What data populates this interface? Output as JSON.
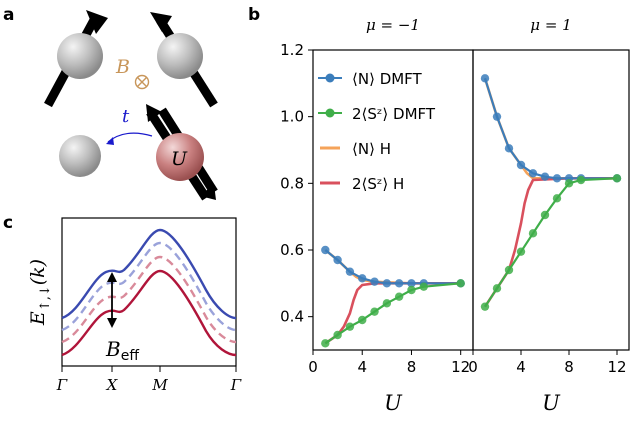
{
  "panels": {
    "a": {
      "letter": "a",
      "field_label": "B",
      "hop_label": "t",
      "interaction_label": "U"
    },
    "b": {
      "letter": "b"
    },
    "c": {
      "letter": "c",
      "ylabel": "E↑,↓(k)",
      "annotation": "B_eff",
      "xticks": [
        "Γ",
        "X",
        "M",
        "Γ"
      ]
    }
  },
  "colors": {
    "N_dmft": "#3b7dbb",
    "S_dmft": "#3fae49",
    "N_h": "#f5a35a",
    "S_h": "#d9505d",
    "band_up_solid": "#3a4ab0",
    "band_up_dash": "#9aa2da",
    "band_dn_dash": "#d98a9a",
    "band_dn_solid": "#b0153a",
    "sphere": "#bdbdbd",
    "sphere_U": "#c98080",
    "field": "#c8965a",
    "hop": "#1a1acc"
  },
  "chart_data": [
    {
      "type": "line",
      "title": "μ = −1",
      "xlabel": "U",
      "ylabel": "",
      "xlim": [
        0,
        13
      ],
      "ylim": [
        0.3,
        1.2
      ],
      "xticks": [
        0,
        4,
        8,
        12
      ],
      "yticks": [
        0.4,
        0.6,
        0.8,
        1.0,
        1.2
      ],
      "ytick_labels": [
        "0.4",
        "0.6",
        "0.8",
        "1.0",
        "1.2"
      ],
      "legend": {
        "placement": "top-right",
        "entries": [
          "⟨N⟩ DMFT",
          "2⟨Sᶻ⟩ DMFT",
          "⟨N⟩ H",
          "2⟨Sᶻ⟩ H"
        ]
      },
      "series": [
        {
          "name": "⟨N⟩ DMFT",
          "kind": "markers+line",
          "x": [
            1,
            2,
            3,
            4,
            5,
            6,
            7,
            8,
            9,
            12
          ],
          "y": [
            0.6,
            0.57,
            0.535,
            0.515,
            0.505,
            0.5,
            0.5,
            0.5,
            0.5,
            0.5
          ]
        },
        {
          "name": "2⟨Sᶻ⟩ DMFT",
          "kind": "markers+line",
          "x": [
            1,
            2,
            3,
            4,
            5,
            6,
            7,
            8,
            9,
            12
          ],
          "y": [
            0.32,
            0.345,
            0.37,
            0.39,
            0.415,
            0.44,
            0.46,
            0.48,
            0.49,
            0.5
          ]
        },
        {
          "name": "⟨N⟩ H",
          "kind": "line",
          "x": [
            1,
            2,
            3,
            3.5,
            4,
            5,
            6,
            8,
            12
          ],
          "y": [
            0.6,
            0.57,
            0.535,
            0.52,
            0.51,
            0.505,
            0.503,
            0.5,
            0.5
          ]
        },
        {
          "name": "2⟨Sᶻ⟩ H",
          "kind": "line",
          "x": [
            1,
            2,
            2.5,
            3,
            3.3,
            3.6,
            4,
            5,
            8,
            12
          ],
          "y": [
            0.32,
            0.345,
            0.37,
            0.41,
            0.45,
            0.48,
            0.495,
            0.5,
            0.5,
            0.5
          ]
        }
      ]
    },
    {
      "type": "line",
      "title": "μ = 1",
      "xlabel": "U",
      "ylabel": "",
      "xlim": [
        0,
        13
      ],
      "ylim": [
        0.3,
        1.2
      ],
      "xticks": [
        0,
        4,
        8,
        12
      ],
      "series": [
        {
          "name": "⟨N⟩ DMFT",
          "kind": "markers+line",
          "x": [
            1,
            2,
            3,
            4,
            5,
            6,
            7,
            8,
            9,
            12
          ],
          "y": [
            1.115,
            1.0,
            0.905,
            0.855,
            0.83,
            0.82,
            0.815,
            0.815,
            0.815,
            0.815
          ]
        },
        {
          "name": "2⟨Sᶻ⟩ DMFT",
          "kind": "markers+line",
          "x": [
            1,
            2,
            3,
            4,
            5,
            6,
            7,
            8,
            9,
            12
          ],
          "y": [
            0.43,
            0.485,
            0.54,
            0.595,
            0.65,
            0.705,
            0.755,
            0.8,
            0.81,
            0.815
          ]
        },
        {
          "name": "⟨N⟩ H",
          "kind": "line",
          "x": [
            1,
            2,
            3,
            4,
            4.5,
            5,
            6,
            8,
            12
          ],
          "y": [
            1.115,
            1.0,
            0.905,
            0.855,
            0.83,
            0.815,
            0.815,
            0.815,
            0.815
          ]
        },
        {
          "name": "2⟨Sᶻ⟩ H",
          "kind": "line",
          "x": [
            1,
            2,
            3,
            3.5,
            4,
            4.3,
            4.6,
            5,
            8,
            12
          ],
          "y": [
            0.43,
            0.485,
            0.54,
            0.6,
            0.68,
            0.74,
            0.78,
            0.81,
            0.815,
            0.815
          ]
        }
      ]
    }
  ]
}
